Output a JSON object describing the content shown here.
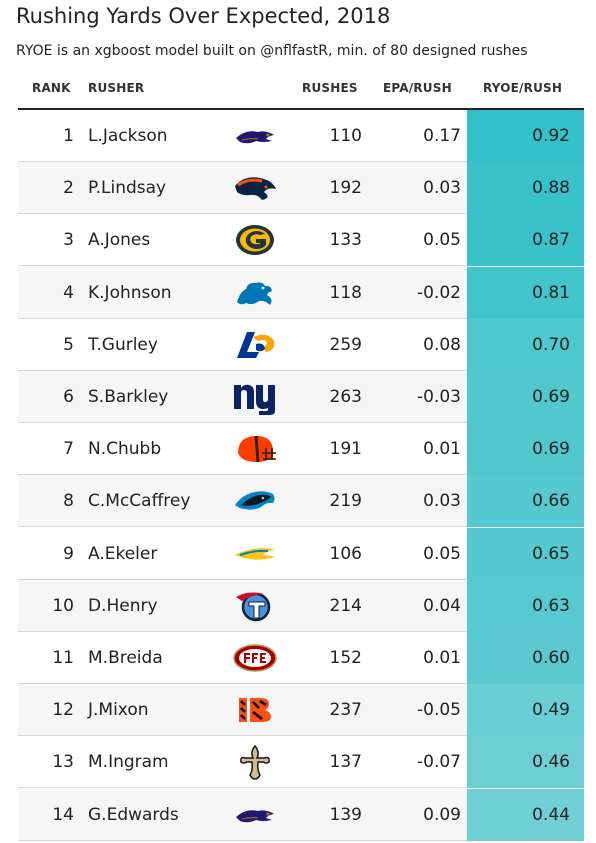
{
  "title": "Rushing Yards Over Expected, 2018",
  "subtitle": "RYOE is an xgboost model built on @nflfastR, min. of 80 designed rushes",
  "columns": {
    "rank": "RANK",
    "rusher": "RUSHER",
    "rushes": "RUSHES",
    "epa": "EPA/RUSH",
    "ryoe": "RYOE/RUSH"
  },
  "colors": {
    "ryoe_high": "#33c1c9",
    "ryoe_low": "#6fcfd4"
  },
  "chart_data": {
    "type": "table",
    "title": "Rushing Yards Over Expected, 2018",
    "subtitle": "RYOE is an xgboost model built on @nflfastR, min. of 80 designed rushes",
    "columns": [
      "RANK",
      "RUSHER",
      "RUSHES",
      "EPA/RUSH",
      "RYOE/RUSH"
    ],
    "rows": [
      {
        "rank": "1",
        "rusher": "L.Jackson",
        "team_logo": "ravens-logo-icon",
        "rushes": "110",
        "epa": "0.17",
        "ryoe": "0.92"
      },
      {
        "rank": "2",
        "rusher": "P.Lindsay",
        "team_logo": "broncos-logo-icon",
        "rushes": "192",
        "epa": "0.03",
        "ryoe": "0.88"
      },
      {
        "rank": "3",
        "rusher": "A.Jones",
        "team_logo": "packers-logo-icon",
        "rushes": "133",
        "epa": "0.05",
        "ryoe": "0.87"
      },
      {
        "rank": "4",
        "rusher": "K.Johnson",
        "team_logo": "lions-logo-icon",
        "rushes": "118",
        "epa": "-0.02",
        "ryoe": "0.81"
      },
      {
        "rank": "5",
        "rusher": "T.Gurley",
        "team_logo": "rams-logo-icon",
        "rushes": "259",
        "epa": "0.08",
        "ryoe": "0.70"
      },
      {
        "rank": "6",
        "rusher": "S.Barkley",
        "team_logo": "giants-logo-icon",
        "rushes": "263",
        "epa": "-0.03",
        "ryoe": "0.69"
      },
      {
        "rank": "7",
        "rusher": "N.Chubb",
        "team_logo": "browns-logo-icon",
        "rushes": "191",
        "epa": "0.01",
        "ryoe": "0.69"
      },
      {
        "rank": "8",
        "rusher": "C.McCaffrey",
        "team_logo": "panthers-logo-icon",
        "rushes": "219",
        "epa": "0.03",
        "ryoe": "0.66"
      },
      {
        "rank": "9",
        "rusher": "A.Ekeler",
        "team_logo": "chargers-logo-icon",
        "rushes": "106",
        "epa": "0.05",
        "ryoe": "0.65"
      },
      {
        "rank": "10",
        "rusher": "D.Henry",
        "team_logo": "titans-logo-icon",
        "rushes": "214",
        "epa": "0.04",
        "ryoe": "0.63"
      },
      {
        "rank": "11",
        "rusher": "M.Breida",
        "team_logo": "49ers-logo-icon",
        "rushes": "152",
        "epa": "0.01",
        "ryoe": "0.60"
      },
      {
        "rank": "12",
        "rusher": "J.Mixon",
        "team_logo": "bengals-logo-icon",
        "rushes": "237",
        "epa": "-0.05",
        "ryoe": "0.49"
      },
      {
        "rank": "13",
        "rusher": "M.Ingram",
        "team_logo": "saints-logo-icon",
        "rushes": "137",
        "epa": "-0.07",
        "ryoe": "0.46"
      },
      {
        "rank": "14",
        "rusher": "G.Edwards",
        "team_logo": "ravens-logo-icon",
        "rushes": "139",
        "epa": "0.09",
        "ryoe": "0.44"
      }
    ]
  }
}
